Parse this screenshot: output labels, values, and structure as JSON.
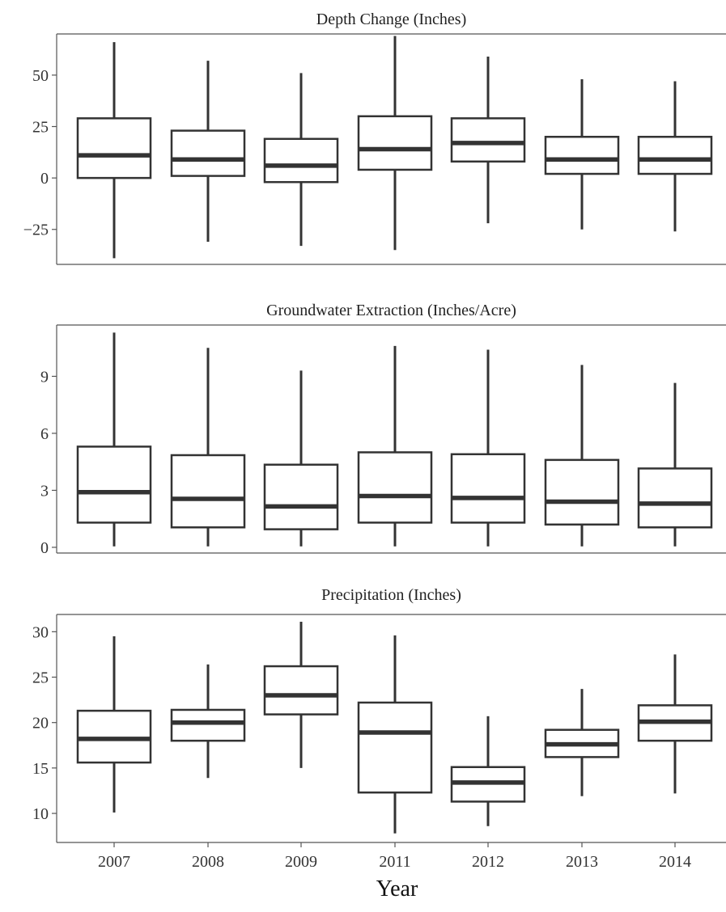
{
  "chart_data": [
    {
      "type": "box",
      "title": "Depth Change (Inches)",
      "categories": [
        "2007",
        "2008",
        "2009",
        "2011",
        "2012",
        "2013",
        "2014"
      ],
      "yticks": [
        -25,
        0,
        25,
        50
      ],
      "ylim": [
        -42,
        70
      ],
      "boxes": [
        {
          "whisker_low": -39,
          "q1": 0,
          "median": 11,
          "q3": 29,
          "whisker_high": 66
        },
        {
          "whisker_low": -31,
          "q1": 1,
          "median": 9,
          "q3": 23,
          "whisker_high": 57
        },
        {
          "whisker_low": -33,
          "q1": -2,
          "median": 6,
          "q3": 19,
          "whisker_high": 51
        },
        {
          "whisker_low": -35,
          "q1": 4,
          "median": 14,
          "q3": 30,
          "whisker_high": 69
        },
        {
          "whisker_low": -22,
          "q1": 8,
          "median": 17,
          "q3": 29,
          "whisker_high": 59
        },
        {
          "whisker_low": -25,
          "q1": 2,
          "median": 9,
          "q3": 20,
          "whisker_high": 48
        },
        {
          "whisker_low": -26,
          "q1": 2,
          "median": 9,
          "q3": 20,
          "whisker_high": 47
        }
      ]
    },
    {
      "type": "box",
      "title": "Groundwater Extraction (Inches/Acre)",
      "categories": [
        "2007",
        "2008",
        "2009",
        "2011",
        "2012",
        "2013",
        "2014"
      ],
      "yticks": [
        0,
        3,
        6,
        9
      ],
      "ylim": [
        -0.3,
        11.7
      ],
      "boxes": [
        {
          "whisker_low": 0.05,
          "q1": 1.3,
          "median": 2.9,
          "q3": 5.3,
          "whisker_high": 11.3
        },
        {
          "whisker_low": 0.05,
          "q1": 1.05,
          "median": 2.55,
          "q3": 4.85,
          "whisker_high": 10.5
        },
        {
          "whisker_low": 0.05,
          "q1": 0.95,
          "median": 2.15,
          "q3": 4.35,
          "whisker_high": 9.3
        },
        {
          "whisker_low": 0.05,
          "q1": 1.3,
          "median": 2.7,
          "q3": 5.0,
          "whisker_high": 10.6
        },
        {
          "whisker_low": 0.05,
          "q1": 1.3,
          "median": 2.6,
          "q3": 4.9,
          "whisker_high": 10.4
        },
        {
          "whisker_low": 0.05,
          "q1": 1.2,
          "median": 2.4,
          "q3": 4.6,
          "whisker_high": 9.6
        },
        {
          "whisker_low": 0.05,
          "q1": 1.05,
          "median": 2.3,
          "q3": 4.15,
          "whisker_high": 8.65
        }
      ]
    },
    {
      "type": "box",
      "title": "Precipitation (Inches)",
      "categories": [
        "2007",
        "2008",
        "2009",
        "2011",
        "2012",
        "2013",
        "2014"
      ],
      "yticks": [
        10,
        15,
        20,
        25,
        30
      ],
      "ylim": [
        6.8,
        31.9
      ],
      "xlabel": "Year",
      "boxes": [
        {
          "whisker_low": 10.1,
          "q1": 15.6,
          "median": 18.2,
          "q3": 21.3,
          "whisker_high": 29.5
        },
        {
          "whisker_low": 13.9,
          "q1": 18.0,
          "median": 20.0,
          "q3": 21.4,
          "whisker_high": 26.4
        },
        {
          "whisker_low": 15.0,
          "q1": 20.9,
          "median": 23.0,
          "q3": 26.2,
          "whisker_high": 31.1
        },
        {
          "whisker_low": 7.8,
          "q1": 12.3,
          "median": 18.9,
          "q3": 22.2,
          "whisker_high": 29.6
        },
        {
          "whisker_low": 8.6,
          "q1": 11.3,
          "median": 13.4,
          "q3": 15.1,
          "whisker_high": 20.7
        },
        {
          "whisker_low": 11.9,
          "q1": 16.2,
          "median": 17.6,
          "q3": 19.2,
          "whisker_high": 23.7
        },
        {
          "whisker_low": 12.2,
          "q1": 18.0,
          "median": 20.1,
          "q3": 21.9,
          "whisker_high": 27.5
        }
      ]
    }
  ]
}
